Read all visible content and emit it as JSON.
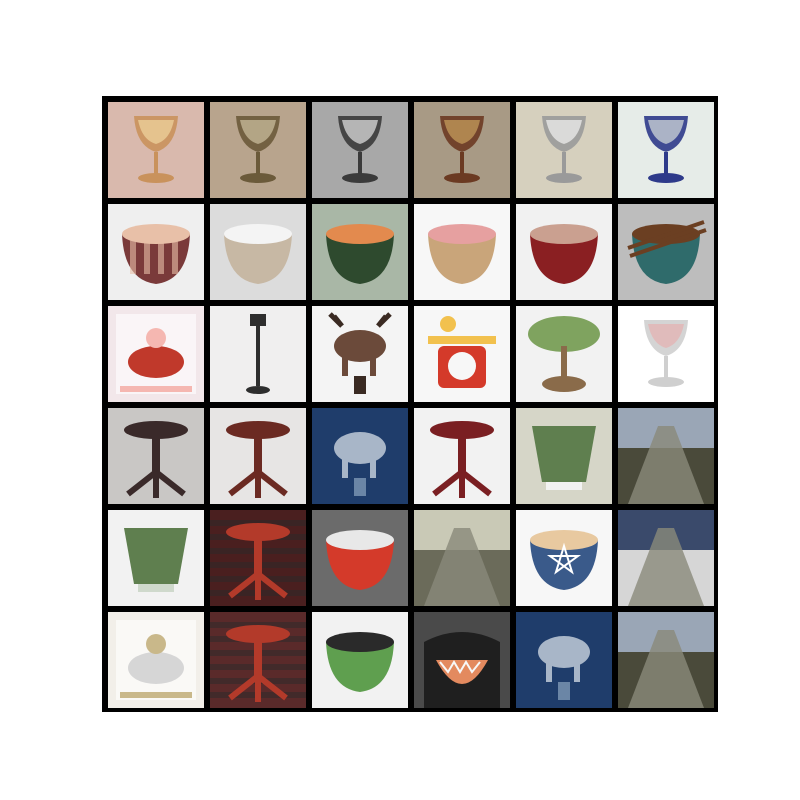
{
  "grid": {
    "rows": 6,
    "cols": 6,
    "tiles": [
      {
        "subject": "goblet-glass",
        "bg": "#d9b9ad",
        "fg": "#c9925c",
        "accent": "#f0d6a0"
      },
      {
        "subject": "goblet-metal",
        "bg": "#b8a48d",
        "fg": "#6b5a3a",
        "accent": "#cfc2a2"
      },
      {
        "subject": "goblet-silver",
        "bg": "#a8a8a8",
        "fg": "#3a3a3a",
        "accent": "#e6e6e6"
      },
      {
        "subject": "goblet-ornate",
        "bg": "#a89a85",
        "fg": "#6b3a22",
        "accent": "#c9a15e"
      },
      {
        "subject": "goblet-silver",
        "bg": "#d6d0be",
        "fg": "#9a9a9a",
        "accent": "#f2f2f2"
      },
      {
        "subject": "goblet-blue",
        "bg": "#e6ece8",
        "fg": "#2e3a8a",
        "accent": "#d8e0dc"
      },
      {
        "subject": "bowl-striped",
        "bg": "#efefef",
        "fg": "#7a3a3a",
        "accent": "#e8c0a8"
      },
      {
        "subject": "bowl-small",
        "bg": "#dcdcdc",
        "fg": "#c7b8a4",
        "accent": "#f4f4f4"
      },
      {
        "subject": "bowl-watermelon",
        "bg": "#a9b7a6",
        "fg": "#2e4a2e",
        "accent": "#e38a4e"
      },
      {
        "subject": "bowl-pottery",
        "bg": "#f7f7f7",
        "fg": "#c9a57a",
        "accent": "#e6a0a0"
      },
      {
        "subject": "bowl-red",
        "bg": "#f1f1f1",
        "fg": "#8a1f22",
        "accent": "#caa090"
      },
      {
        "subject": "bowl-chopsticks",
        "bg": "#bdbdbd",
        "fg": "#2f6b6b",
        "accent": "#6b3f22"
      },
      {
        "subject": "magazine-person",
        "bg": "#f2e7ea",
        "fg": "#c0392b",
        "accent": "#f5b7b1"
      },
      {
        "subject": "street-lamp",
        "bg": "#f0efef",
        "fg": "#2e2e2e",
        "accent": "#bdbdbd"
      },
      {
        "subject": "moose-figurine",
        "bg": "#f4f4f4",
        "fg": "#6b4a3a",
        "accent": "#3a2a22"
      },
      {
        "subject": "toy-clock",
        "bg": "#f7f7f7",
        "fg": "#d43a2a",
        "accent": "#f2c14e"
      },
      {
        "subject": "tree-lamp",
        "bg": "#f2f2f2",
        "fg": "#7fa35f",
        "accent": "#8a6b4a"
      },
      {
        "subject": "wine-glass",
        "bg": "#ffffff",
        "fg": "#cfcfcf",
        "accent": "#e6b0b0"
      },
      {
        "subject": "table-pedestal",
        "bg": "#c9c7c5",
        "fg": "#3a2a2a",
        "accent": "#8a7a7a"
      },
      {
        "subject": "table-pedestal",
        "bg": "#e7e5e4",
        "fg": "#6b2a22",
        "accent": "#b38a7a"
      },
      {
        "subject": "elephant-figurine",
        "bg": "#1f3d6b",
        "fg": "#a8b6c8",
        "accent": "#6b86a6"
      },
      {
        "subject": "table-red",
        "bg": "#f2f2f2",
        "fg": "#7a1f22",
        "accent": "#c9a090"
      },
      {
        "subject": "planter-green",
        "bg": "#d6d6c8",
        "fg": "#5f7f4f",
        "accent": "#f2f2f2"
      },
      {
        "subject": "canal-bridge",
        "bg": "#6b86a6",
        "fg": "#4a4a3a",
        "accent": "#9aa6b6"
      },
      {
        "subject": "planter-green",
        "bg": "#f2f2f2",
        "fg": "#5f7f4f",
        "accent": "#cfd9cc"
      },
      {
        "subject": "rug-table",
        "bg": "#4a1f1f",
        "fg": "#b33a2a",
        "accent": "#2a2a2a"
      },
      {
        "subject": "punch-bowl",
        "bg": "#6b6b6b",
        "fg": "#d43a2a",
        "accent": "#e8e8e8"
      },
      {
        "subject": "canal-bridge",
        "bg": "#1f3d6b",
        "fg": "#6b6b5a",
        "accent": "#c9c9b6"
      },
      {
        "subject": "pentagram-cup",
        "bg": "#f7f7f7",
        "fg": "#3a5a8a",
        "accent": "#e8c9a0"
      },
      {
        "subject": "river-boat",
        "bg": "#1f3d6b",
        "fg": "#d6d6d6",
        "accent": "#3a4a6b"
      },
      {
        "subject": "magazine-rabbit",
        "bg": "#f2efe9",
        "fg": "#d6d6d6",
        "accent": "#c9b88a"
      },
      {
        "subject": "rug-table",
        "bg": "#5a2a2a",
        "fg": "#b33a2a",
        "accent": "#2a2a2a"
      },
      {
        "subject": "lettuce-bowl",
        "bg": "#f2f2f2",
        "fg": "#5f9f4f",
        "accent": "#2a2a2a"
      },
      {
        "subject": "reptile-mouth",
        "bg": "#4a4a4a",
        "fg": "#e38a5f",
        "accent": "#1f1f1f"
      },
      {
        "subject": "elephant-figurine",
        "bg": "#1f3d6b",
        "fg": "#a8b6c8",
        "accent": "#6b86a6"
      },
      {
        "subject": "canal-bridge",
        "bg": "#6b86a6",
        "fg": "#4a4a3a",
        "accent": "#9aa6b6"
      }
    ]
  }
}
